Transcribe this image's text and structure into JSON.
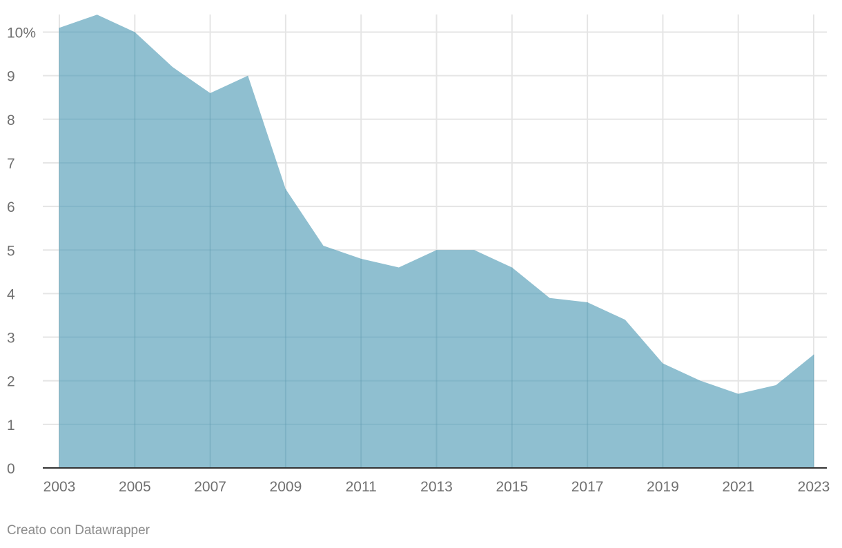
{
  "chart_data": {
    "type": "area",
    "title": "",
    "xlabel": "",
    "ylabel": "",
    "x": [
      2003,
      2004,
      2005,
      2006,
      2007,
      2008,
      2009,
      2010,
      2011,
      2012,
      2013,
      2014,
      2015,
      2016,
      2017,
      2018,
      2019,
      2020,
      2021,
      2022,
      2023
    ],
    "values": [
      10.1,
      10.4,
      10.0,
      9.2,
      8.6,
      9.0,
      6.4,
      5.1,
      4.8,
      4.6,
      5.0,
      5.0,
      4.6,
      3.9,
      3.8,
      3.4,
      2.4,
      2.0,
      1.7,
      1.9,
      2.6
    ],
    "xlim": [
      2003,
      2023
    ],
    "ylim": [
      0,
      10.4
    ],
    "x_ticks": [
      "2003",
      "2005",
      "2007",
      "2009",
      "2011",
      "2013",
      "2015",
      "2017",
      "2019",
      "2021",
      "2023"
    ],
    "y_ticks": [
      "0",
      "1",
      "2",
      "3",
      "4",
      "5",
      "6",
      "7",
      "8",
      "9",
      "10%"
    ],
    "grid": true,
    "legend": "none",
    "fill_color": "#8fbfd0",
    "grid_color": "#e5e5e5",
    "axis_color": "#333333",
    "tick_label_color": "#707070"
  },
  "footer": {
    "credit": "Creato con Datawrapper"
  }
}
